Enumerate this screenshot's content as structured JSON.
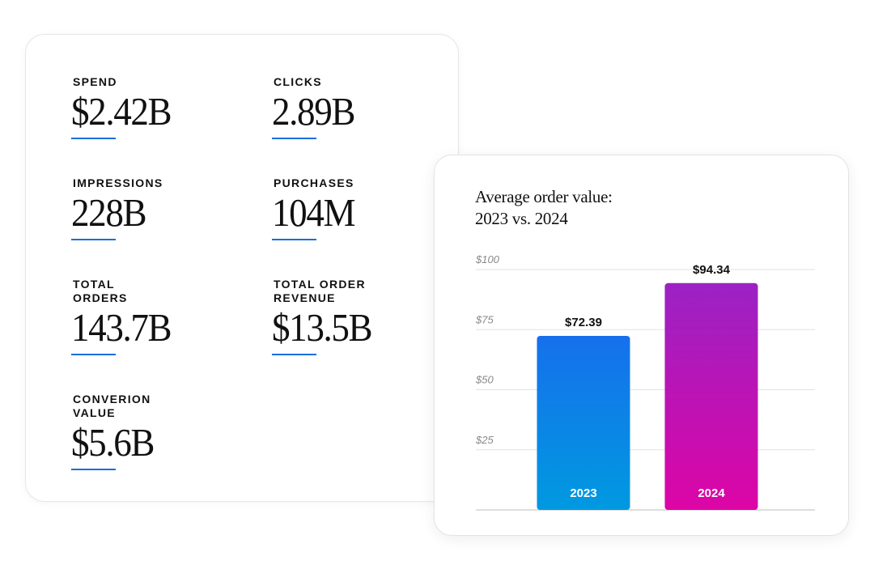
{
  "metrics": [
    {
      "label": "SPEND",
      "value": "$2.42B"
    },
    {
      "label": "CLICKS",
      "value": "2.89B"
    },
    {
      "label": "IMPRESSIONS",
      "value": "228B"
    },
    {
      "label": "PURCHASES",
      "value": "104M"
    },
    {
      "label": "TOTAL\nORDERS",
      "value": "143.7B"
    },
    {
      "label": "TOTAL ORDER\nREVENUE",
      "value": "$13.5B"
    },
    {
      "label": "CONVERION\nVALUE",
      "value": "$5.6B"
    }
  ],
  "colors": {
    "accent_underline": "#1a6fd8",
    "bar_2023_top": "#1670ec",
    "bar_2023_bottom": "#0099e0",
    "bar_2024_top": "#9b22c4",
    "bar_2024_bottom": "#dd05a6"
  },
  "chart_data": {
    "type": "bar",
    "title": "Average order value:\n2023 vs. 2024",
    "categories": [
      "2023",
      "2024"
    ],
    "values": [
      72.39,
      94.34
    ],
    "value_labels": [
      "$72.39",
      "$94.34"
    ],
    "ylim": [
      0,
      100
    ],
    "yticks": [
      {
        "value": 25,
        "label": "$25"
      },
      {
        "value": 50,
        "label": "$50"
      },
      {
        "value": 75,
        "label": "$75"
      },
      {
        "value": 100,
        "label": "$100"
      }
    ],
    "grid": true,
    "xlabel": "",
    "ylabel": ""
  }
}
